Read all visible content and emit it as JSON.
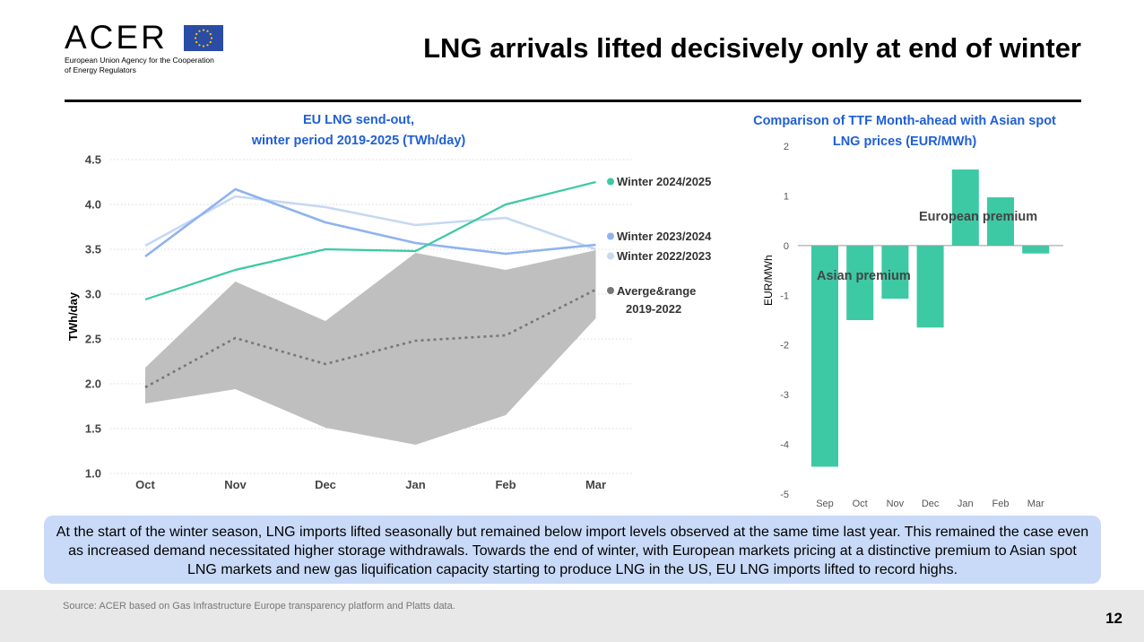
{
  "header": {
    "logo_text": "ACER",
    "logo_subtitle_line1": "European Union Agency for the Cooperation",
    "logo_subtitle_line2": "of Energy Regulators",
    "title": "LNG arrivals lifted decisively only at end of winter"
  },
  "colors": {
    "winter_2024_2025": "#3cc9a4",
    "winter_2023_2024": "#8fb3ee",
    "winter_2022_2023": "#c6d8f3",
    "average": "#777777",
    "range": "#bfbfbf",
    "title_blue": "#1f5fd6",
    "bar": "#3cc9a4",
    "summary_bg": "#c9daf8"
  },
  "chart_data": [
    {
      "type": "line",
      "title_line1": "EU LNG send-out,",
      "title_line2": "winter period 2019-2025 (TWh/day)",
      "ylabel": "TWh/day",
      "xlabel": "",
      "categories": [
        "Oct",
        "Nov",
        "Dec",
        "Jan",
        "Feb",
        "Mar"
      ],
      "ylim": [
        1.0,
        4.5
      ],
      "yticks": [
        "1.0",
        "1.5",
        "2.0",
        "2.5",
        "3.0",
        "3.5",
        "4.0",
        "4.5"
      ],
      "grid": true,
      "legend_position": "right",
      "series": [
        {
          "name": "Winter 2024/2025",
          "values": [
            2.94,
            3.27,
            3.5,
            3.48,
            4.0,
            4.25
          ]
        },
        {
          "name": "Winter 2023/2024",
          "values": [
            3.42,
            4.17,
            3.8,
            3.57,
            3.45,
            3.55
          ]
        },
        {
          "name": "Winter 2022/2023",
          "values": [
            3.54,
            4.09,
            3.97,
            3.77,
            3.85,
            3.5
          ]
        },
        {
          "name": "Averge&range 2019-2022",
          "name_line1": "Averge&range",
          "name_line2": "2019-2022",
          "values": [
            1.96,
            2.51,
            2.22,
            2.48,
            2.54,
            3.05
          ]
        }
      ],
      "range": {
        "upper": [
          2.18,
          3.14,
          2.7,
          3.46,
          3.27,
          3.49
        ],
        "lower": [
          1.78,
          1.94,
          1.51,
          1.32,
          1.65,
          2.73
        ]
      }
    },
    {
      "type": "bar",
      "title_line1": "Comparison of TTF Month-ahead with Asian spot",
      "title_line2": "LNG prices (EUR/MWh)",
      "ylabel": "EUR/MWh",
      "xlabel": "",
      "categories": [
        "Sep",
        "Oct",
        "Nov",
        "Dec",
        "Jan",
        "Feb",
        "Mar"
      ],
      "values": [
        -4.45,
        -1.5,
        -1.07,
        -1.65,
        1.53,
        0.97,
        -0.16
      ],
      "ylim": [
        -5,
        2
      ],
      "yticks": [
        "2",
        "1",
        "0",
        "-1",
        "-2",
        "-3",
        "-4",
        "-5"
      ],
      "grid": false,
      "annotations": {
        "european": "European premium",
        "asian": "Asian premium"
      }
    }
  ],
  "summary": "At the start of the winter season, LNG imports lifted seasonally but remained below import levels observed at the same time last year. This remained the case even as increased demand necessitated higher storage withdrawals. Towards the end of winter, with European markets pricing at a distinctive premium to Asian spot LNG markets and new gas liquification capacity starting to produce LNG in the US, EU LNG imports lifted to record highs.",
  "footer": {
    "source": "Source: ACER based on Gas Infrastructure Europe transparency platform and Platts data.",
    "page_number": "12"
  }
}
